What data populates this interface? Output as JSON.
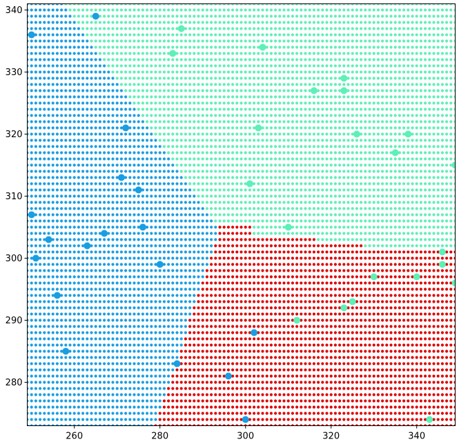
{
  "chart_data": {
    "type": "scatter",
    "title": "",
    "xlabel": "",
    "ylabel": "",
    "xlim": [
      249,
      349
    ],
    "ylim": [
      273,
      341
    ],
    "xticks": [
      260,
      280,
      300,
      320,
      340
    ],
    "yticks": [
      280,
      290,
      300,
      310,
      320,
      330,
      340
    ],
    "x_tick_labels": [
      "260",
      "280",
      "300",
      "320",
      "340"
    ],
    "y_tick_labels": [
      "280",
      "290",
      "300",
      "310",
      "320",
      "330",
      "340"
    ],
    "grid": false,
    "legend": "none",
    "background": {
      "description": "dense grid of small dots colored by decision region",
      "x_step": 1,
      "y_step": 1,
      "regions": {
        "class_a_color": "#1a9ee3",
        "class_b_color": "#5ef0b8",
        "class_c_color": "#e00000"
      }
    },
    "series": [
      {
        "color": "#1a9ee3",
        "points": [
          [
            265,
            339
          ],
          [
            250,
            336
          ],
          [
            272,
            321
          ],
          [
            271,
            313
          ],
          [
            275,
            311
          ],
          [
            250,
            307
          ],
          [
            276,
            305
          ],
          [
            267,
            304
          ],
          [
            254,
            303
          ],
          [
            263,
            302
          ],
          [
            251,
            300
          ],
          [
            280,
            299
          ],
          [
            256,
            294
          ],
          [
            258,
            285
          ],
          [
            284,
            283
          ],
          [
            296,
            281
          ],
          [
            302,
            288
          ],
          [
            300,
            274
          ]
        ]
      },
      {
        "color": "#5ef0b8",
        "points": [
          [
            285,
            337
          ],
          [
            304,
            334
          ],
          [
            283,
            333
          ],
          [
            323,
            329
          ],
          [
            316,
            327
          ],
          [
            323,
            327
          ],
          [
            303,
            321
          ],
          [
            326,
            320
          ],
          [
            338,
            320
          ],
          [
            335,
            317
          ],
          [
            349,
            315
          ],
          [
            301,
            312
          ],
          [
            310,
            305
          ],
          [
            346,
            301
          ],
          [
            346,
            299
          ],
          [
            330,
            297
          ],
          [
            340,
            297
          ],
          [
            349,
            296
          ],
          [
            325,
            293
          ],
          [
            323,
            292
          ],
          [
            312,
            290
          ],
          [
            343,
            274
          ]
        ]
      }
    ]
  }
}
